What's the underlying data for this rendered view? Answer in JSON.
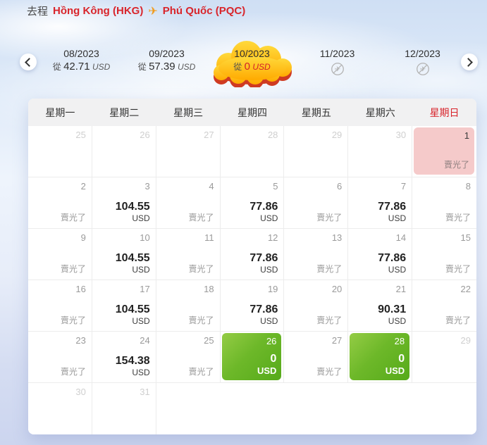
{
  "route_header": {
    "direction_label": "去程",
    "origin": "Hồng Kông (HKG)",
    "destination": "Phú Quốc (PQC)"
  },
  "month_bar": {
    "months": [
      {
        "label": "08/2023",
        "from_label": "從",
        "price": "42.71",
        "currency": "USD",
        "state": "normal"
      },
      {
        "label": "09/2023",
        "from_label": "從",
        "price": "57.39",
        "currency": "USD",
        "state": "normal"
      },
      {
        "label": "10/2023",
        "from_label": "從",
        "price": "0",
        "currency": "USD",
        "state": "selected"
      },
      {
        "label": "11/2023",
        "state": "no-flight"
      },
      {
        "label": "12/2023",
        "state": "no-flight"
      }
    ]
  },
  "calendar": {
    "weekdays": [
      "星期一",
      "星期二",
      "星期三",
      "星期四",
      "星期五",
      "星期六",
      "星期日"
    ],
    "sold_out_label": "賣光了",
    "currency": "USD",
    "weeks": [
      [
        {
          "day": "25",
          "type": "prev"
        },
        {
          "day": "26",
          "type": "prev"
        },
        {
          "day": "27",
          "type": "prev"
        },
        {
          "day": "28",
          "type": "prev"
        },
        {
          "day": "29",
          "type": "prev"
        },
        {
          "day": "30",
          "type": "prev"
        },
        {
          "day": "1",
          "type": "pink"
        }
      ],
      [
        {
          "day": "2",
          "type": "soldout"
        },
        {
          "day": "3",
          "type": "price",
          "price": "104.55"
        },
        {
          "day": "4",
          "type": "soldout"
        },
        {
          "day": "5",
          "type": "price",
          "price": "77.86"
        },
        {
          "day": "6",
          "type": "soldout"
        },
        {
          "day": "7",
          "type": "price",
          "price": "77.86"
        },
        {
          "day": "8",
          "type": "soldout"
        }
      ],
      [
        {
          "day": "9",
          "type": "soldout"
        },
        {
          "day": "10",
          "type": "price",
          "price": "104.55"
        },
        {
          "day": "11",
          "type": "soldout"
        },
        {
          "day": "12",
          "type": "price",
          "price": "77.86"
        },
        {
          "day": "13",
          "type": "soldout"
        },
        {
          "day": "14",
          "type": "price",
          "price": "77.86"
        },
        {
          "day": "15",
          "type": "soldout"
        }
      ],
      [
        {
          "day": "16",
          "type": "soldout"
        },
        {
          "day": "17",
          "type": "price",
          "price": "104.55"
        },
        {
          "day": "18",
          "type": "soldout"
        },
        {
          "day": "19",
          "type": "price",
          "price": "77.86"
        },
        {
          "day": "20",
          "type": "soldout"
        },
        {
          "day": "21",
          "type": "price",
          "price": "90.31"
        },
        {
          "day": "22",
          "type": "soldout"
        }
      ],
      [
        {
          "day": "23",
          "type": "soldout"
        },
        {
          "day": "24",
          "type": "price",
          "price": "154.38"
        },
        {
          "day": "25",
          "type": "soldout"
        },
        {
          "day": "26",
          "type": "zero",
          "price": "0"
        },
        {
          "day": "27",
          "type": "soldout"
        },
        {
          "day": "28",
          "type": "zero",
          "price": "0"
        },
        {
          "day": "29",
          "type": "muted"
        }
      ],
      [
        {
          "day": "30",
          "type": "muted"
        },
        {
          "day": "31",
          "type": "muted"
        },
        {
          "type": "blank"
        },
        {
          "type": "blank"
        },
        {
          "type": "blank"
        },
        {
          "type": "blank"
        },
        {
          "type": "blank"
        }
      ]
    ]
  },
  "colors": {
    "accent_red": "#d9252b",
    "plane_orange": "#f09b1d",
    "cloud_yellow_top": "#ffd93b",
    "cloud_yellow_bottom": "#ffaa00",
    "cloud_shadow_red": "#cf3b22",
    "available_green": "#6db829",
    "soldout_pink": "#f5caca"
  }
}
